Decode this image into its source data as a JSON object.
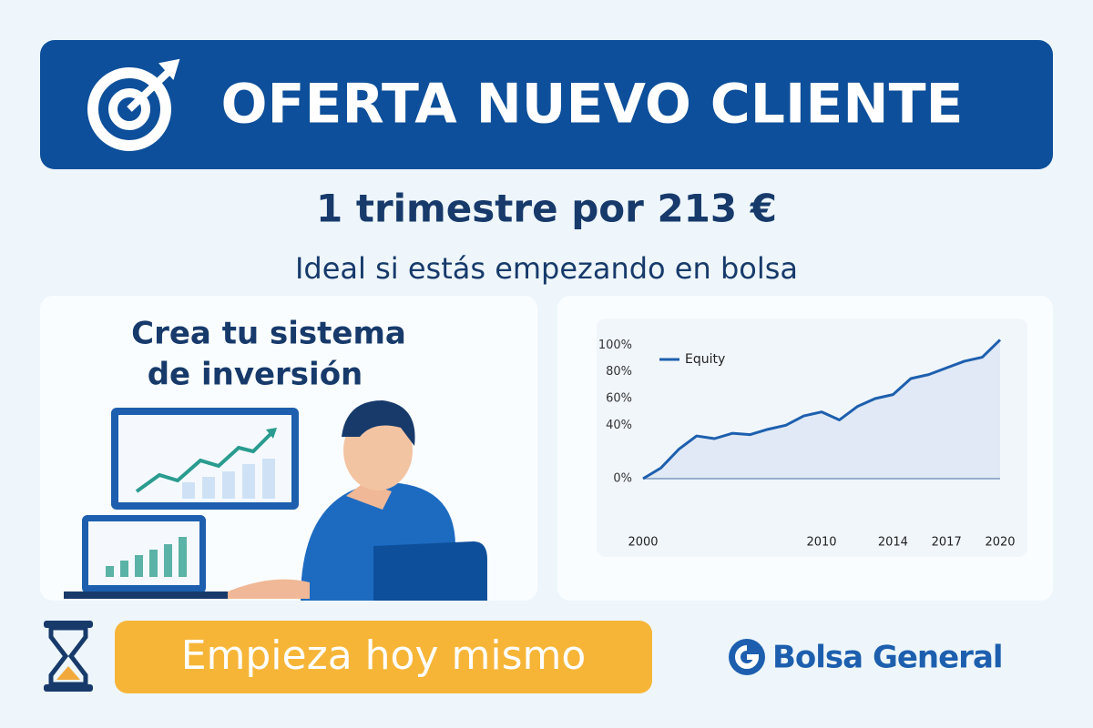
{
  "header": {
    "title": "OFERTA NUEVO CLIENTE"
  },
  "offer": {
    "headline": "1 trimestre por 213 €",
    "subtitle": "Ideal si estás empezando en bolsa"
  },
  "panel": {
    "title_line1": "Crea tu sistema",
    "title_line2": "de inversión"
  },
  "chart_data": {
    "type": "line",
    "x": [
      2000,
      2001,
      2002,
      2003,
      2004,
      2005,
      2006,
      2007,
      2008,
      2009,
      2010,
      2011,
      2012,
      2013,
      2014,
      2015,
      2016,
      2017,
      2018,
      2019,
      2020
    ],
    "series": [
      {
        "name": "Equity",
        "color": "#1d5fae",
        "values": [
          0,
          8,
          22,
          32,
          30,
          34,
          33,
          37,
          40,
          47,
          50,
          44,
          54,
          60,
          63,
          75,
          78,
          83,
          88,
          91,
          104
        ]
      }
    ],
    "xlim": [
      2000,
      2020
    ],
    "xticks": [
      2000,
      2010,
      2014,
      2017,
      2020
    ],
    "ylim": [
      0,
      105
    ],
    "yticks": [
      {
        "value": 0,
        "label": "0%"
      },
      {
        "value": 40,
        "label": "40%"
      },
      {
        "value": 60,
        "label": "60%"
      },
      {
        "value": 80,
        "label": "80%"
      },
      {
        "value": 100,
        "label": "100%"
      }
    ],
    "grid": false,
    "legend": "top-left"
  },
  "cta": {
    "label": "Empieza hoy mismo"
  },
  "brand": {
    "name": "Bolsa General"
  }
}
